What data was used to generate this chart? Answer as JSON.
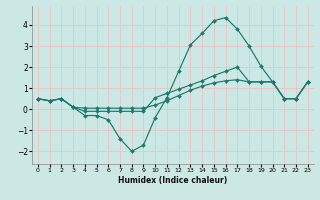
{
  "title": "",
  "xlabel": "Humidex (Indice chaleur)",
  "ylabel": "",
  "bg_color": "#cce8e4",
  "grid_color": "#e8c8c8",
  "line_color": "#1a7a6e",
  "xlim": [
    -0.5,
    23.5
  ],
  "ylim": [
    -2.6,
    4.9
  ],
  "xticks": [
    0,
    1,
    2,
    3,
    4,
    5,
    6,
    7,
    8,
    9,
    10,
    11,
    12,
    13,
    14,
    15,
    16,
    17,
    18,
    19,
    20,
    21,
    22,
    23
  ],
  "yticks": [
    -2,
    -1,
    0,
    1,
    2,
    3,
    4
  ],
  "series": [
    [
      0.5,
      0.4,
      0.5,
      0.1,
      -0.3,
      -0.3,
      -0.5,
      -1.4,
      -2.0,
      -1.7,
      -0.4,
      0.55,
      1.8,
      3.05,
      3.6,
      4.2,
      4.35,
      3.8,
      3.0,
      2.05,
      1.3,
      0.5,
      0.5,
      1.3
    ],
    [
      0.5,
      0.4,
      0.5,
      0.1,
      -0.1,
      -0.1,
      -0.1,
      -0.1,
      -0.1,
      -0.1,
      0.55,
      0.75,
      0.95,
      1.15,
      1.35,
      1.6,
      1.8,
      2.0,
      1.3,
      1.3,
      1.3,
      0.5,
      0.5,
      1.3
    ],
    [
      0.5,
      0.4,
      0.5,
      0.1,
      0.05,
      0.05,
      0.05,
      0.05,
      0.05,
      0.05,
      0.2,
      0.4,
      0.65,
      0.9,
      1.1,
      1.25,
      1.35,
      1.4,
      1.3,
      1.3,
      1.3,
      0.5,
      0.5,
      1.3
    ]
  ]
}
